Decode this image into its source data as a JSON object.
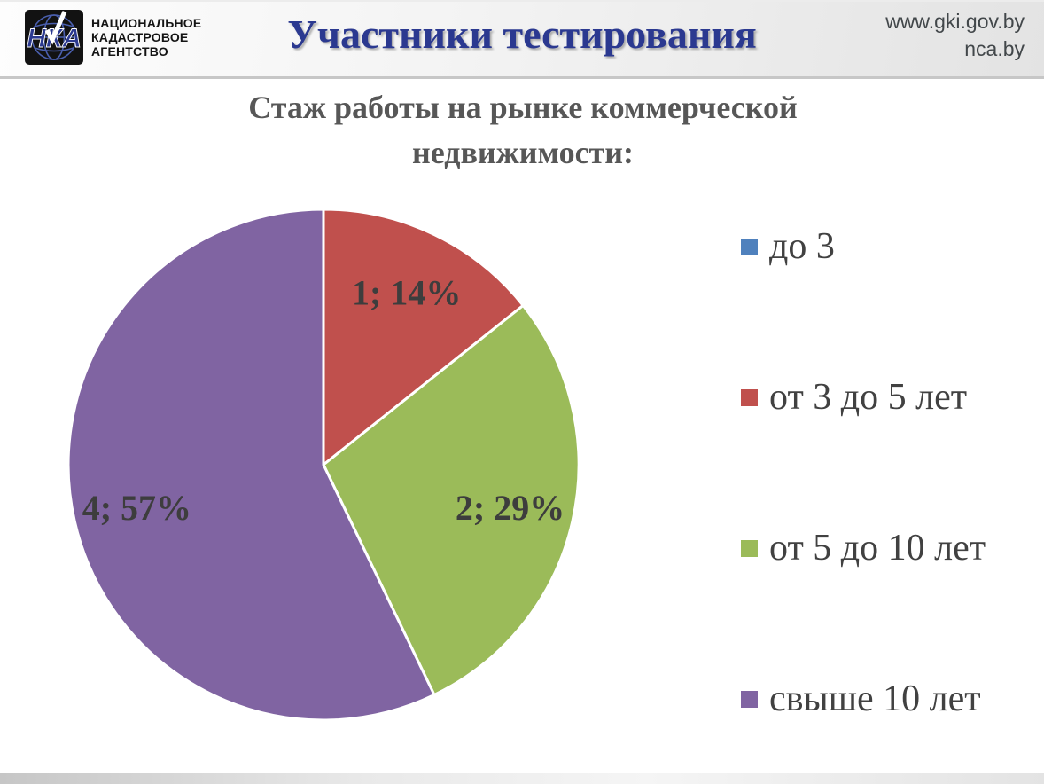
{
  "header": {
    "logo": {
      "abbr": "НКА",
      "lines": [
        "НАЦИОНАЛЬНОЕ",
        "КАДАСТРОВОЕ",
        "АГЕНТСТВО"
      ]
    },
    "title": "Участники тестирования",
    "urls": [
      "www.gki.gov.by",
      "nca.by"
    ]
  },
  "chart_data": {
    "type": "pie",
    "title": "Стаж работы на рынке коммерческой недвижимости:",
    "legend_position": "right",
    "start_angle_deg": 0,
    "direction": "clockwise",
    "total_count": 7,
    "slices": [
      {
        "label": "до 3",
        "count": 0,
        "percent": 0,
        "color": "#4F81BD",
        "data_label": ""
      },
      {
        "label": "от 3 до 5 лет",
        "count": 1,
        "percent": 14,
        "color": "#C0504D",
        "data_label": "1; 14%"
      },
      {
        "label": "от 5 до 10 лет",
        "count": 2,
        "percent": 29,
        "color": "#9BBB59",
        "data_label": "2; 29%"
      },
      {
        "label": "свыше 10 лет",
        "count": 4,
        "percent": 57,
        "color": "#8064A2",
        "data_label": "4; 57%"
      }
    ]
  }
}
